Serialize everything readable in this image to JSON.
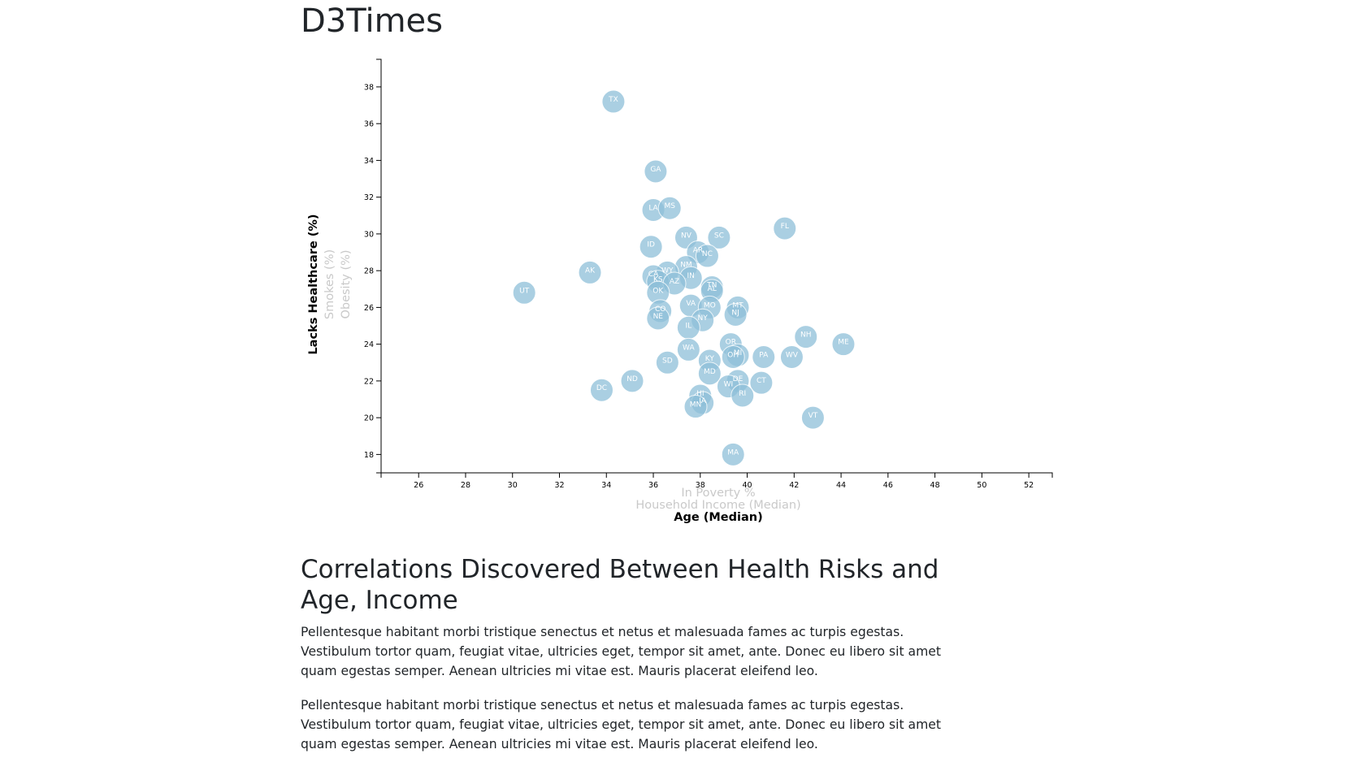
{
  "page_title": "D3Times",
  "article": {
    "heading": "Correlations Discovered Between Health Risks and Age, Income",
    "paragraphs": [
      "Pellentesque habitant morbi tristique senectus et netus et malesuada fames ac turpis egestas. Vestibulum tortor quam, feugiat vitae, ultricies eget, tempor sit amet, ante. Donec eu libero sit amet quam egestas semper. Aenean ultricies mi vitae est. Mauris placerat eleifend leo.",
      "Pellentesque habitant morbi tristique senectus et netus et malesuada fames ac turpis egestas. Vestibulum tortor quam, feugiat vitae, ultricies eget, tempor sit amet, ante. Donec eu libero sit amet quam egestas semper. Aenean ultricies mi vitae est. Mauris placerat eleifend leo."
    ]
  },
  "chart_data": {
    "type": "scatter",
    "title": "",
    "x_axis_options": [
      {
        "label": "In Poverty %",
        "active": false
      },
      {
        "label": "Household Income (Median)",
        "active": false
      },
      {
        "label": "Age (Median)",
        "active": true
      }
    ],
    "y_axis_options": [
      {
        "label": "Lacks Healthcare (%)",
        "active": true
      },
      {
        "label": "Smokes (%)",
        "active": false
      },
      {
        "label": "Obesity (%)",
        "active": false
      }
    ],
    "xlim": [
      24.4,
      53
    ],
    "ylim": [
      17,
      39.5
    ],
    "x_ticks": [
      26,
      28,
      30,
      32,
      34,
      36,
      38,
      40,
      42,
      44,
      46,
      48,
      50,
      52
    ],
    "y_ticks": [
      18,
      20,
      22,
      24,
      26,
      28,
      30,
      32,
      34,
      36,
      38
    ],
    "point_color": "#8ec0d9",
    "points": [
      {
        "abbr": "TX",
        "x": 34.3,
        "y": 37.2
      },
      {
        "abbr": "GA",
        "x": 36.1,
        "y": 33.4
      },
      {
        "abbr": "LA",
        "x": 36.0,
        "y": 31.3
      },
      {
        "abbr": "MS",
        "x": 36.7,
        "y": 31.4
      },
      {
        "abbr": "FL",
        "x": 41.6,
        "y": 30.3
      },
      {
        "abbr": "NV",
        "x": 37.4,
        "y": 29.8
      },
      {
        "abbr": "SC",
        "x": 38.8,
        "y": 29.8
      },
      {
        "abbr": "ID",
        "x": 35.9,
        "y": 29.3
      },
      {
        "abbr": "AR",
        "x": 37.9,
        "y": 29.0
      },
      {
        "abbr": "NC",
        "x": 38.3,
        "y": 28.8
      },
      {
        "abbr": "AK",
        "x": 33.3,
        "y": 27.9
      },
      {
        "abbr": "NM",
        "x": 37.4,
        "y": 28.2
      },
      {
        "abbr": "WY",
        "x": 36.6,
        "y": 27.9
      },
      {
        "abbr": "CA",
        "x": 36.0,
        "y": 27.7
      },
      {
        "abbr": "IN",
        "x": 37.6,
        "y": 27.6
      },
      {
        "abbr": "KS",
        "x": 36.2,
        "y": 27.4
      },
      {
        "abbr": "AZ",
        "x": 36.9,
        "y": 27.3
      },
      {
        "abbr": "TN",
        "x": 38.5,
        "y": 27.1
      },
      {
        "abbr": "AL",
        "x": 38.5,
        "y": 26.9
      },
      {
        "abbr": "OK",
        "x": 36.2,
        "y": 26.8
      },
      {
        "abbr": "UT",
        "x": 30.5,
        "y": 26.8
      },
      {
        "abbr": "VA",
        "x": 37.6,
        "y": 26.1
      },
      {
        "abbr": "MO",
        "x": 38.4,
        "y": 26.0
      },
      {
        "abbr": "MT",
        "x": 39.6,
        "y": 26.0
      },
      {
        "abbr": "CO",
        "x": 36.3,
        "y": 25.8
      },
      {
        "abbr": "NJ",
        "x": 39.5,
        "y": 25.6
      },
      {
        "abbr": "NE",
        "x": 36.2,
        "y": 25.4
      },
      {
        "abbr": "NY",
        "x": 38.1,
        "y": 25.3
      },
      {
        "abbr": "IL",
        "x": 37.5,
        "y": 24.9
      },
      {
        "abbr": "NH",
        "x": 42.5,
        "y": 24.4
      },
      {
        "abbr": "ME",
        "x": 44.1,
        "y": 24.0
      },
      {
        "abbr": "OR",
        "x": 39.3,
        "y": 24.0
      },
      {
        "abbr": "WA",
        "x": 37.5,
        "y": 23.7
      },
      {
        "abbr": "MI",
        "x": 39.6,
        "y": 23.4
      },
      {
        "abbr": "OH",
        "x": 39.4,
        "y": 23.3
      },
      {
        "abbr": "PA",
        "x": 40.7,
        "y": 23.3
      },
      {
        "abbr": "WV",
        "x": 41.9,
        "y": 23.3
      },
      {
        "abbr": "KY",
        "x": 38.4,
        "y": 23.1
      },
      {
        "abbr": "SD",
        "x": 36.6,
        "y": 23.0
      },
      {
        "abbr": "MD",
        "x": 38.4,
        "y": 22.4
      },
      {
        "abbr": "ND",
        "x": 35.1,
        "y": 22.0
      },
      {
        "abbr": "CT",
        "x": 40.6,
        "y": 21.9
      },
      {
        "abbr": "DE",
        "x": 39.6,
        "y": 22.0
      },
      {
        "abbr": "WI",
        "x": 39.2,
        "y": 21.7
      },
      {
        "abbr": "DC",
        "x": 33.8,
        "y": 21.5
      },
      {
        "abbr": "RI",
        "x": 39.8,
        "y": 21.2
      },
      {
        "abbr": "HI",
        "x": 38.0,
        "y": 21.2
      },
      {
        "abbr": "IA",
        "x": 38.1,
        "y": 20.8
      },
      {
        "abbr": "MN",
        "x": 37.8,
        "y": 20.6
      },
      {
        "abbr": "VT",
        "x": 42.8,
        "y": 20.0
      },
      {
        "abbr": "MA",
        "x": 39.4,
        "y": 18.0
      }
    ]
  }
}
